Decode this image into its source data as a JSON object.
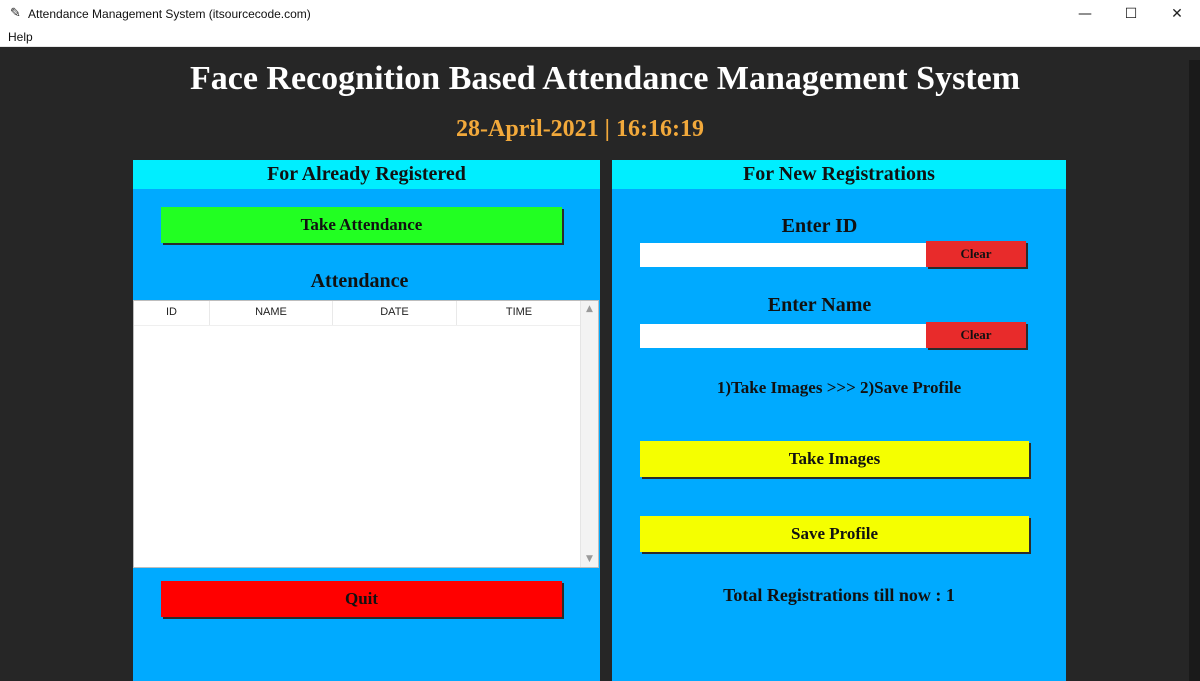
{
  "window": {
    "title": "Attendance Management System (itsourcecode.com)",
    "icon": "feather-icon",
    "minimize_glyph": "—",
    "maximize_glyph": "☐",
    "close_glyph": "✕"
  },
  "menu": {
    "help_label": "Help"
  },
  "header": {
    "title": "Face Recognition Based Attendance Management System",
    "datetime": "28-April-2021  |  16:16:19"
  },
  "left_panel": {
    "header": "For Already Registered",
    "take_attendance_label": "Take Attendance",
    "attendance_label": "Attendance",
    "table": {
      "columns": [
        "ID",
        "NAME",
        "DATE",
        "TIME"
      ],
      "rows": []
    },
    "quit_label": "Quit"
  },
  "right_panel": {
    "header": "For New Registrations",
    "enter_id_label": "Enter ID",
    "id_value": "",
    "clear_label": "Clear",
    "enter_name_label": "Enter Name",
    "name_value": "",
    "steps_text": "1)Take Images  >>>  2)Save Profile",
    "take_images_label": "Take Images",
    "save_profile_label": "Save Profile",
    "total_registrations_text": "Total Registrations till now  : 1"
  },
  "colors": {
    "background": "#262626",
    "panel": "#00aaff",
    "panel_header": "#00eeff",
    "datetime": "#f2a93b",
    "take_attendance": "#22ff22",
    "quit": "#ff0000",
    "clear": "#e82b2b",
    "yellow_buttons": "#f5ff00"
  }
}
